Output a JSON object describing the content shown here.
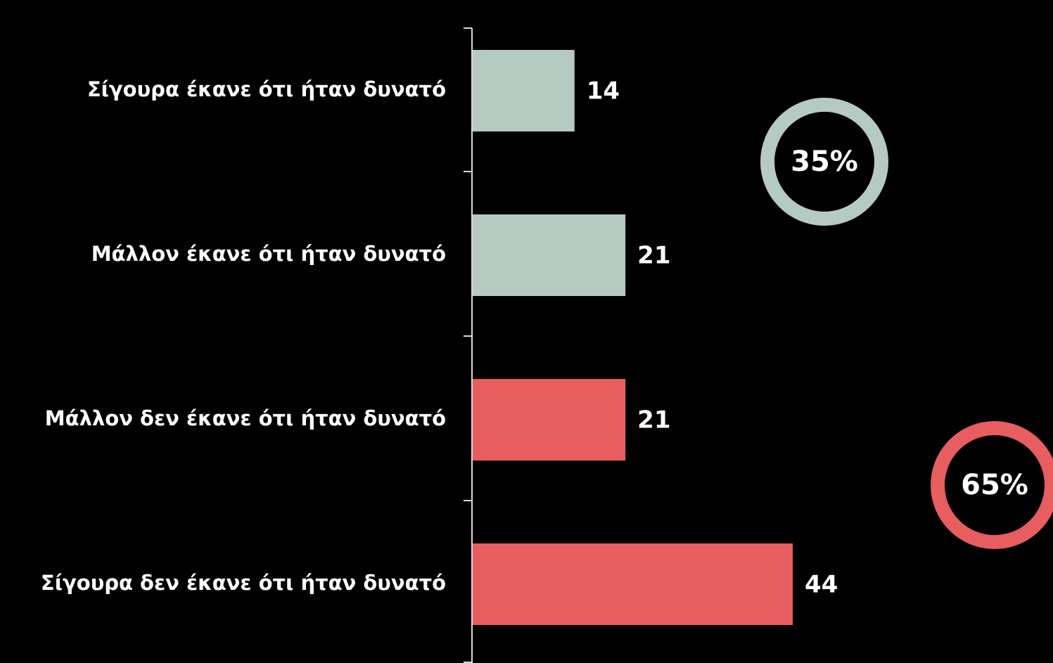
{
  "chart_data": {
    "type": "bar",
    "orientation": "horizontal",
    "categories": [
      "Σίγουρα έκανε ότι ήταν δυνατό",
      "Μάλλον έκανε ότι ήταν δυνατό",
      "Μάλλον δεν έκανε ότι ήταν δυνατό",
      "Σίγουρα δεν έκανε ότι ήταν δυνατό"
    ],
    "values": [
      14,
      21,
      21,
      44
    ],
    "colors": [
      "#b5cbc1",
      "#b5cbc1",
      "#e85d60",
      "#e85d60"
    ],
    "groups": [
      {
        "value": 35,
        "label": "35%",
        "color": "#b5cbc1"
      },
      {
        "value": 65,
        "label": "65%",
        "color": "#e85d60"
      }
    ]
  }
}
